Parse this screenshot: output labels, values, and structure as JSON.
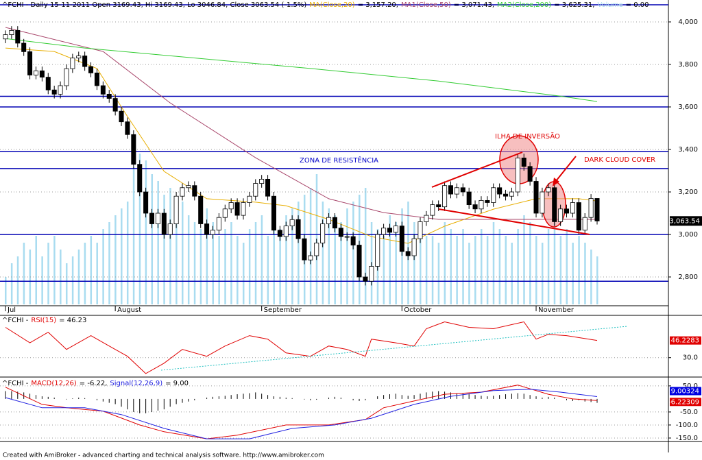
{
  "chart_data": [
    {
      "type": "candlestick",
      "title": "^FCHI - Daily 15-11-2011 Open 3169.43, Hi 3169.43, Lo 3046.84, Close 3063.54 (-1.5%)",
      "xlim": [
        0,
        97
      ],
      "xticks": [
        {
          "value": 0,
          "label": "Jul"
        },
        {
          "value": 18,
          "label": "August"
        },
        {
          "value": 42,
          "label": "September"
        },
        {
          "value": 65,
          "label": "October"
        },
        {
          "value": 87,
          "label": "November"
        }
      ],
      "ylim": [
        2671,
        4087
      ],
      "yticks": [
        {
          "value": 2800,
          "label": "2,800"
        },
        {
          "value": 3000,
          "label": "3,000"
        },
        {
          "value": 3200,
          "label": "3,200"
        },
        {
          "value": 3400,
          "label": "3,400"
        },
        {
          "value": 3600,
          "label": "3,600"
        },
        {
          "value": 3800,
          "label": "3,800"
        },
        {
          "value": 4000,
          "label": "4,000"
        }
      ],
      "grid": true,
      "open": [
        3920,
        3940,
        3960,
        3900,
        3860,
        3750,
        3770,
        3740,
        3680,
        3660,
        3700,
        3780,
        3830,
        3840,
        3790,
        3760,
        3700,
        3660,
        3640,
        3580,
        3530,
        3470,
        3330,
        3200,
        3100,
        3050,
        3100,
        3000,
        3050,
        3180,
        3220,
        3230,
        3180,
        3050,
        3000,
        3020,
        3080,
        3120,
        3150,
        3090,
        3150,
        3180,
        3240,
        3260,
        3180,
        3020,
        2990,
        3040,
        3070,
        2980,
        2880,
        2900,
        2960,
        3050,
        3080,
        3030,
        2990,
        2990,
        2950,
        2800,
        2780,
        2850,
        3000,
        3030,
        3010,
        3040,
        2920,
        2900,
        2980,
        3060,
        3090,
        3140,
        3130,
        3230,
        3190,
        3220,
        3200,
        3140,
        3120,
        3160,
        3150,
        3220,
        3190,
        3180,
        3200,
        3360,
        3320,
        3250,
        3100,
        3200,
        3220,
        3060,
        3120,
        3100,
        3150,
        3020,
        3080,
        3169.43
      ],
      "high": [
        3960,
        3980,
        3980,
        3920,
        3880,
        3790,
        3790,
        3760,
        3700,
        3720,
        3800,
        3850,
        3860,
        3860,
        3810,
        3780,
        3720,
        3680,
        3660,
        3600,
        3550,
        3490,
        3350,
        3220,
        3120,
        3120,
        3120,
        3070,
        3200,
        3240,
        3250,
        3250,
        3200,
        3070,
        3040,
        3100,
        3140,
        3170,
        3170,
        3170,
        3200,
        3260,
        3280,
        3280,
        3200,
        3040,
        3060,
        3090,
        3090,
        3000,
        2920,
        2980,
        3070,
        3100,
        3100,
        3050,
        3010,
        3010,
        2970,
        2820,
        2870,
        3020,
        3050,
        3050,
        3060,
        3060,
        2940,
        3000,
        3080,
        3110,
        3160,
        3160,
        3250,
        3250,
        3240,
        3240,
        3220,
        3160,
        3180,
        3180,
        3240,
        3240,
        3210,
        3220,
        3380,
        3380,
        3340,
        3270,
        3220,
        3240,
        3240,
        3140,
        3140,
        3170,
        3170,
        3100,
        3190,
        3169.43
      ],
      "low": [
        3900,
        3920,
        3880,
        3840,
        3730,
        3730,
        3720,
        3660,
        3640,
        3640,
        3680,
        3760,
        3810,
        3770,
        3740,
        3680,
        3640,
        3620,
        3560,
        3510,
        3450,
        3310,
        3180,
        3080,
        3030,
        3030,
        2980,
        2980,
        3030,
        3160,
        3200,
        3160,
        3030,
        2980,
        2980,
        3000,
        3060,
        3100,
        3070,
        3070,
        3130,
        3160,
        3220,
        3160,
        3000,
        2970,
        2970,
        3020,
        2960,
        2860,
        2860,
        2880,
        2940,
        3030,
        3010,
        2970,
        2970,
        2930,
        2780,
        2760,
        2760,
        2830,
        2980,
        2990,
        2990,
        2900,
        2880,
        2880,
        2960,
        3040,
        3070,
        3110,
        3110,
        3170,
        3170,
        3180,
        3120,
        3100,
        3100,
        3130,
        3130,
        3170,
        3160,
        3160,
        3180,
        3300,
        3230,
        3080,
        3080,
        3180,
        3040,
        3040,
        3080,
        3080,
        3000,
        3000,
        3060,
        3046.84
      ],
      "close": [
        3940,
        3960,
        3900,
        3860,
        3750,
        3770,
        3740,
        3680,
        3660,
        3700,
        3780,
        3830,
        3840,
        3790,
        3760,
        3700,
        3660,
        3640,
        3580,
        3530,
        3470,
        3330,
        3200,
        3100,
        3050,
        3100,
        3000,
        3050,
        3180,
        3220,
        3230,
        3180,
        3050,
        3000,
        3020,
        3080,
        3120,
        3150,
        3090,
        3150,
        3180,
        3240,
        3260,
        3180,
        3020,
        2990,
        3040,
        3070,
        2980,
        2880,
        2900,
        2960,
        3050,
        3080,
        3030,
        2990,
        2990,
        2950,
        2800,
        2780,
        2850,
        3000,
        3030,
        3010,
        3040,
        2920,
        2900,
        2980,
        3060,
        3090,
        3140,
        3130,
        3230,
        3190,
        3220,
        3200,
        3140,
        3120,
        3160,
        3150,
        3220,
        3190,
        3180,
        3200,
        3360,
        3320,
        3250,
        3100,
        3200,
        3220,
        3060,
        3120,
        3100,
        3150,
        3020,
        3080,
        3169.43,
        3063.54
      ],
      "last_label": "3,063.54",
      "series": [
        {
          "name": "MA(Close,20)",
          "legend_value": "= 3,157.20,",
          "color": "#e8ae00",
          "x": [
            0,
            8,
            15,
            20,
            26,
            33,
            41,
            46,
            53,
            60,
            66,
            72,
            80,
            87,
            94,
            97
          ],
          "values": [
            3877,
            3861,
            3781,
            3555,
            3297,
            3168,
            3152,
            3135,
            3071,
            2990,
            2958,
            3039,
            3119,
            3168,
            3168,
            3157.2
          ]
        },
        {
          "name": "MA1(Close,50)",
          "legend_value": "= 3,071.43,",
          "color": "#a8456a",
          "x": [
            0,
            16,
            27,
            41,
            53,
            62,
            71,
            85,
            97
          ],
          "values": [
            3974,
            3861,
            3619,
            3361,
            3168,
            3103,
            3071,
            3071,
            3071.43
          ]
        },
        {
          "name": "MA2(Close,200)",
          "legend_value": "= 3,625.31,",
          "color": "#33cc33",
          "x": [
            0,
            13,
            50,
            71,
            91,
            97
          ],
          "values": [
            3922,
            3877,
            3781,
            3722,
            3651,
            3625.31
          ]
        }
      ],
      "volume": {
        "name": "Volume",
        "legend_value": "= 0.00",
        "color": "#a9dcf0",
        "values": [
          40,
          60,
          70,
          90,
          80,
          100,
          70,
          90,
          100,
          80,
          60,
          70,
          80,
          90,
          100,
          90,
          110,
          120,
          130,
          140,
          150,
          200,
          220,
          210,
          190,
          180,
          160,
          170,
          140,
          150,
          130,
          120,
          110,
          140,
          120,
          100,
          110,
          120,
          100,
          90,
          110,
          120,
          130,
          100,
          120,
          110,
          130,
          140,
          150,
          160,
          170,
          190,
          150,
          140,
          130,
          120,
          140,
          150,
          160,
          170,
          120,
          110,
          100,
          130,
          120,
          140,
          150,
          120,
          110,
          100,
          100,
          90,
          120,
          110,
          100,
          110,
          90,
          100,
          110,
          100,
          120,
          110,
          100,
          90,
          110,
          130,
          120,
          100,
          90,
          110,
          120,
          100,
          110,
          90,
          100,
          90,
          80,
          70
        ]
      },
      "levels": {
        "color": "#0000b4",
        "values": [
          3650,
          3600,
          3390,
          3310,
          3000,
          2780
        ]
      },
      "annotations": [
        "ILHA DE INVERSÃO",
        "DARK CLOUD COVER",
        "ZONA DE RESISTÊNCIA"
      ]
    },
    {
      "type": "line",
      "symbol": "^FCHI -",
      "xlim": [
        0,
        97
      ],
      "ylim": [
        13,
        68
      ],
      "yticks": [
        {
          "value": 30,
          "label": "30.0"
        }
      ],
      "series": [
        {
          "name": "RSI(15)",
          "legend_value": "= 46.23",
          "last_label": "46.2283",
          "color": "#e00000",
          "x": [
            0,
            4,
            7,
            10,
            14,
            17,
            20,
            23,
            26,
            29,
            33,
            36,
            40,
            43,
            46,
            50,
            53,
            56,
            59,
            60,
            64,
            67,
            69,
            72,
            76,
            80,
            85,
            87,
            89,
            92,
            97
          ],
          "values": [
            58.6,
            44,
            54,
            37.8,
            50.8,
            41,
            31.3,
            15,
            24.8,
            37.8,
            31.3,
            41,
            50.8,
            47.5,
            34.5,
            31.3,
            41,
            37.8,
            31.3,
            47.5,
            44,
            41,
            57.3,
            63.8,
            58.6,
            57.3,
            63.8,
            47.5,
            52,
            50.8,
            46.2283
          ]
        }
      ]
    },
    {
      "type": "macd",
      "symbol": "^FCHI -",
      "xlim": [
        0,
        97
      ],
      "ylim": [
        -158,
        76
      ],
      "yticks": [
        {
          "value": 50,
          "label": "50.0"
        },
        {
          "value": -50,
          "label": "-50.0"
        },
        {
          "value": -100,
          "label": "-100.0"
        },
        {
          "value": -150,
          "label": "-150.0"
        }
      ],
      "series": [
        {
          "name": "MACD(12,26)",
          "legend_value": "= -6.22,",
          "last_label": "-6.22309",
          "color": "#e00000",
          "x": [
            0,
            6,
            10,
            16,
            22,
            26,
            33,
            38,
            46,
            53,
            59,
            62,
            67,
            72,
            78,
            84,
            89,
            93,
            97
          ],
          "values": [
            45,
            -21,
            -34,
            -47,
            -100,
            -126,
            -153,
            -139,
            -100,
            -100,
            -79,
            -34,
            -8,
            18,
            26,
            53,
            18,
            0,
            -6.22309
          ]
        },
        {
          "name": "Signal(12,26,9)",
          "legend_value": "= 9.00",
          "last_label": "9.00324",
          "color": "#2020e0",
          "x": [
            0,
            6,
            13,
            19,
            26,
            33,
            40,
            47,
            54,
            60,
            67,
            73,
            80,
            86,
            91,
            97
          ],
          "values": [
            5,
            -34,
            -34,
            -60,
            -113,
            -153,
            -153,
            -113,
            -100,
            -74,
            -21,
            10,
            32,
            37,
            26,
            9.00324
          ]
        }
      ],
      "histogram": [
        30,
        30,
        28,
        25,
        20,
        15,
        10,
        8,
        5,
        0,
        -2,
        2,
        5,
        3,
        0,
        -5,
        -10,
        -15,
        -20,
        -30,
        -40,
        -50,
        -55,
        -55,
        -50,
        -45,
        -40,
        -30,
        -20,
        -15,
        -10,
        -5,
        0,
        5,
        8,
        10,
        12,
        15,
        18,
        20,
        22,
        25,
        20,
        15,
        10,
        8,
        5,
        3,
        0,
        -2,
        -5,
        -3,
        0,
        5,
        8,
        5,
        0,
        -5,
        -8,
        -5,
        0,
        10,
        15,
        18,
        20,
        15,
        12,
        15,
        20,
        25,
        28,
        30,
        28,
        25,
        22,
        20,
        18,
        15,
        12,
        10,
        12,
        15,
        18,
        20,
        22,
        20,
        15,
        10,
        5,
        8,
        5,
        0,
        -5,
        -8,
        -5,
        -10,
        -12,
        -15
      ]
    }
  ],
  "footer": "Created with AmiBroker - advanced charting and technical analysis software. http://www.amibroker.com"
}
